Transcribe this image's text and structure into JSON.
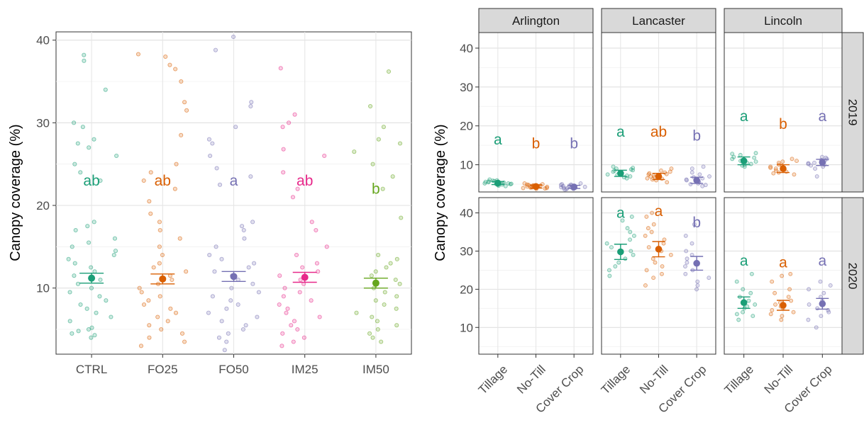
{
  "colors": {
    "CTRL": "#1b9e77",
    "FO25": "#d95f02",
    "FO50": "#7570b3",
    "IM25": "#e7298a",
    "IM50": "#66a61e",
    "Tillage": "#1b9e77",
    "No-Till": "#d95f02",
    "Cover Crop": "#7570b3"
  },
  "chart_data": [
    {
      "type": "scatter",
      "ylabel": "Canopy coverage (%)",
      "xlabel": "",
      "categories": [
        "CTRL",
        "FO25",
        "FO50",
        "IM25",
        "IM50"
      ],
      "ylim": [
        2,
        41
      ],
      "yticks": [
        10,
        20,
        30,
        40
      ],
      "grid": true,
      "groups": [
        {
          "name": "CTRL",
          "mean": 11.2,
          "se_low": 10.6,
          "se_high": 11.8,
          "letter": "ab",
          "letter_y": 23,
          "points": [
            4,
            4.3,
            4.5,
            4.8,
            5,
            5.2,
            6,
            6.5,
            7,
            7.5,
            8,
            8.5,
            9,
            9.5,
            10,
            10.5,
            11,
            11.5,
            12,
            12.5,
            13,
            13.5,
            14,
            14.5,
            15,
            15.5,
            16,
            17,
            17.5,
            18,
            23,
            24,
            25,
            26,
            27,
            27.5,
            28,
            29.5,
            30,
            34,
            37.5,
            38.2
          ]
        },
        {
          "name": "FO25",
          "mean": 11.1,
          "se_low": 10.5,
          "se_high": 11.7,
          "letter": "ab",
          "letter_y": 23,
          "points": [
            3,
            3.5,
            4,
            4.5,
            5,
            5.5,
            6,
            6.5,
            7,
            7.5,
            8,
            8.5,
            9,
            9.5,
            10,
            10.5,
            11,
            11.5,
            12,
            12.5,
            13,
            14,
            15,
            16,
            17,
            18,
            19,
            20.5,
            22,
            23,
            24,
            25,
            28.5,
            31.5,
            32.5,
            35,
            36.5,
            37,
            38,
            38.3
          ]
        },
        {
          "name": "FO50",
          "mean": 11.4,
          "se_low": 10.8,
          "se_high": 12.0,
          "letter": "a",
          "letter_y": 23,
          "points": [
            2.5,
            3.5,
            4,
            4.5,
            5,
            5.5,
            6,
            6.5,
            7,
            7.5,
            8,
            8.5,
            9,
            9.5,
            10,
            10.5,
            11,
            11.5,
            12,
            12.5,
            13,
            13.5,
            14,
            15,
            16,
            17,
            17.5,
            18,
            22.5,
            23.5,
            24.5,
            26,
            27.5,
            28,
            29.5,
            32,
            32.5,
            38.8,
            40.4
          ]
        },
        {
          "name": "IM25",
          "mean": 11.3,
          "se_low": 10.7,
          "se_high": 11.9,
          "letter": "ab",
          "letter_y": 23,
          "points": [
            3,
            3.5,
            4,
            4.5,
            5,
            5.5,
            6,
            6.5,
            7,
            7.5,
            8,
            8.5,
            9,
            9.5,
            10,
            10.5,
            11,
            11.5,
            12,
            12.5,
            13,
            14,
            15,
            17,
            18,
            21,
            22,
            24,
            26,
            26.8,
            29.5,
            30,
            31,
            36.6
          ]
        },
        {
          "name": "IM50",
          "mean": 10.6,
          "se_low": 10.0,
          "se_high": 11.2,
          "letter": "b",
          "letter_y": 22,
          "points": [
            3.5,
            4,
            4.5,
            5,
            5.5,
            6,
            6.5,
            7,
            7.5,
            8,
            8.5,
            9,
            9.5,
            10,
            10.5,
            11,
            11.5,
            12,
            12.5,
            13,
            13.5,
            14,
            18.5,
            22,
            23.5,
            25,
            26.5,
            27.5,
            28,
            29.5,
            32,
            36.2
          ]
        }
      ]
    },
    {
      "type": "scatter",
      "ylabel": "Canopy coverage (%)",
      "xlabel": "",
      "sites": [
        "Arlington",
        "Lancaster",
        "Lincoln"
      ],
      "years": [
        "2019",
        "2020"
      ],
      "categories": [
        "Tillage",
        "No-Till",
        "Cover Crop"
      ],
      "ylim": [
        3,
        44
      ],
      "yticks": [
        10,
        20,
        30,
        40
      ],
      "grid": true,
      "panels": [
        {
          "site": "Arlington",
          "year": "2019",
          "groups": [
            {
              "name": "Tillage",
              "mean": 5.3,
              "se_low": 4.9,
              "se_high": 5.7,
              "letter": "a",
              "letter_y": 16.5,
              "points": [
                4.5,
                4.8,
                5,
                5.2,
                5.4,
                5.6,
                5.8,
                6,
                5.1,
                4.9,
                5.5,
                5.3,
                5.7,
                6.2,
                4.6,
                5.9,
                5.2,
                5.0
              ]
            },
            {
              "name": "No-Till",
              "mean": 4.4,
              "se_low": 4.0,
              "se_high": 4.8,
              "letter": "b",
              "letter_y": 15.5,
              "points": [
                3.8,
                4,
                4.2,
                4.4,
                4.6,
                4.8,
                5,
                4.1,
                4.3,
                4.5,
                4.7,
                3.9,
                4.9,
                4.2,
                4.6,
                4.0,
                4.4,
                5.2
              ]
            },
            {
              "name": "Cover Crop",
              "mean": 4.3,
              "se_low": 3.9,
              "se_high": 4.7,
              "letter": "b",
              "letter_y": 15.5,
              "points": [
                3.6,
                3.8,
                4,
                4.2,
                4.4,
                4.6,
                4.8,
                5,
                5.2,
                3.9,
                4.1,
                4.3,
                4.5,
                4.7,
                3.7,
                4.9,
                4.2,
                4.0
              ]
            }
          ]
        },
        {
          "site": "Lancaster",
          "year": "2019",
          "groups": [
            {
              "name": "Tillage",
              "mean": 7.8,
              "se_low": 7.0,
              "se_high": 8.6,
              "letter": "a",
              "letter_y": 18.5,
              "points": [
                6.5,
                7,
                7.5,
                8,
                8.5,
                9,
                9.5,
                7.2,
                7.8,
                8.2,
                6.8,
                8.8,
                9.2,
                7.4,
                8.6
              ]
            },
            {
              "name": "No-Till",
              "mean": 7.0,
              "se_low": 6.2,
              "se_high": 7.8,
              "letter": "ab",
              "letter_y": 18.5,
              "points": [
                5.5,
                6,
                6.5,
                7,
                7.5,
                8,
                8.5,
                9,
                6.2,
                6.8,
                7.2,
                7.8,
                8.2,
                6.4,
                7.6
              ]
            },
            {
              "name": "Cover Crop",
              "mean": 6.0,
              "se_low": 5.2,
              "se_high": 6.8,
              "letter": "b",
              "letter_y": 17.5,
              "points": [
                4.5,
                5,
                5.5,
                6,
                6.5,
                7,
                7.5,
                8,
                9,
                5.2,
                5.8,
                6.2,
                6.8,
                4.8,
                9.5
              ]
            }
          ]
        },
        {
          "site": "Lincoln",
          "year": "2019",
          "groups": [
            {
              "name": "Tillage",
              "mean": 11.0,
              "se_low": 10.0,
              "se_high": 12.0,
              "letter": "a",
              "letter_y": 22.5,
              "points": [
                9.5,
                10,
                10.5,
                11,
                11.5,
                12,
                12.5,
                13,
                10.2,
                10.8,
                11.2,
                11.8,
                9.8,
                12.8
              ]
            },
            {
              "name": "No-Till",
              "mean": 9.0,
              "se_low": 8.0,
              "se_high": 10.0,
              "letter": "b",
              "letter_y": 20.5,
              "points": [
                7.5,
                8,
                8.5,
                9,
                9.5,
                10,
                10.5,
                11,
                11.5,
                8.2,
                8.8,
                9.2,
                9.8,
                7.8,
                10.8
              ]
            },
            {
              "name": "Cover Crop",
              "mean": 10.6,
              "se_low": 9.8,
              "se_high": 11.4,
              "letter": "a",
              "letter_y": 22.5,
              "points": [
                7,
                9,
                9.5,
                10,
                10.5,
                11,
                11.5,
                12,
                9.8,
                10.2,
                10.8,
                11.2,
                10.4,
                11.8
              ]
            }
          ]
        },
        {
          "site": "Lancaster",
          "year": "2020",
          "groups": [
            {
              "name": "Tillage",
              "mean": 29.8,
              "se_low": 27.8,
              "se_high": 31.8,
              "letter": "a",
              "letter_y": 40,
              "points": [
                23.5,
                25,
                26,
                27,
                28,
                29,
                30,
                31,
                32,
                33,
                34,
                35,
                36,
                38,
                39
              ]
            },
            {
              "name": "No-Till",
              "mean": 30.5,
              "se_low": 28.5,
              "se_high": 32.5,
              "letter": "a",
              "letter_y": 40.5,
              "points": [
                21,
                23,
                24,
                25,
                26,
                27,
                28,
                29,
                30,
                31,
                32,
                33,
                34,
                35,
                36,
                37,
                39,
                40
              ]
            },
            {
              "name": "Cover Crop",
              "mean": 26.8,
              "se_low": 25.0,
              "se_high": 28.6,
              "letter": "b",
              "letter_y": 37.5,
              "points": [
                20,
                21,
                22,
                23,
                24,
                25,
                26,
                27,
                28,
                29,
                30,
                32,
                34,
                37
              ]
            }
          ]
        },
        {
          "site": "Lincoln",
          "year": "2020",
          "groups": [
            {
              "name": "Tillage",
              "mean": 16.5,
              "se_low": 15.0,
              "se_high": 18.0,
              "letter": "a",
              "letter_y": 27.5,
              "points": [
                12,
                13,
                14,
                15,
                16,
                17,
                18,
                19,
                20,
                22,
                24,
                13.5,
                15.5
              ]
            },
            {
              "name": "No-Till",
              "mean": 15.8,
              "se_low": 14.5,
              "se_high": 17.1,
              "letter": "a",
              "letter_y": 27,
              "points": [
                12,
                13,
                14,
                14.5,
                15,
                15.5,
                16,
                17,
                18,
                19,
                20,
                22,
                23.5,
                24,
                13.5,
                16.5
              ]
            },
            {
              "name": "Cover Crop",
              "mean": 16.2,
              "se_low": 14.8,
              "se_high": 17.6,
              "letter": "a",
              "letter_y": 27.5,
              "points": [
                10,
                12,
                13,
                14,
                15,
                16,
                17,
                18,
                19,
                20,
                21,
                22,
                14.5
              ]
            }
          ]
        }
      ]
    }
  ]
}
